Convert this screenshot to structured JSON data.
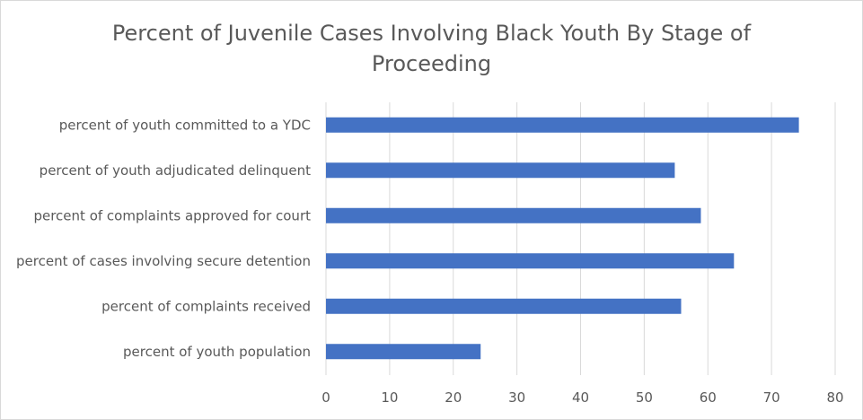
{
  "chart_data": {
    "type": "bar",
    "orientation": "horizontal",
    "title": "Percent of Juvenile Cases Involving Black Youth By Stage of Proceeding",
    "categories": [
      "percent of youth committed to a YDC",
      "percent of youth adjudicated delinquent",
      "percent of complaints approved for court",
      "percent of cases involving secure detention",
      "percent of complaints received",
      "percent of youth population"
    ],
    "values": [
      74.3,
      54.8,
      58.9,
      64.1,
      55.8,
      24.3
    ],
    "xlim": [
      0,
      80
    ],
    "x_ticks": [
      "0",
      "10",
      "20",
      "30",
      "40",
      "50",
      "60",
      "70",
      "80"
    ],
    "grid": "vertical",
    "legend": "none",
    "bar_color": "#4472C4"
  }
}
